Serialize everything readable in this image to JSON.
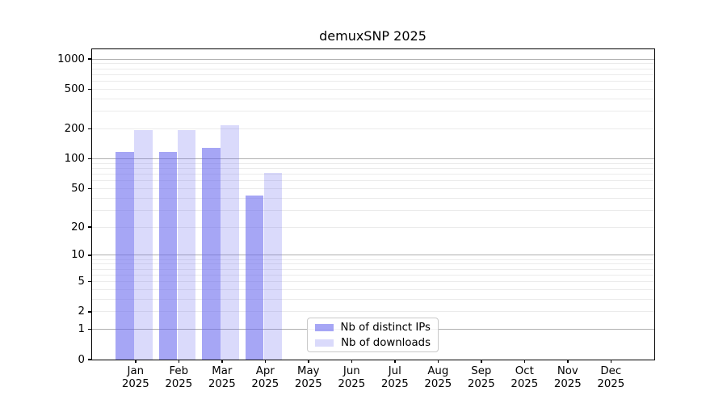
{
  "chart_data": {
    "type": "bar",
    "title": "demuxSNP 2025",
    "x_months": [
      "Jan",
      "Feb",
      "Mar",
      "Apr",
      "May",
      "Jun",
      "Jul",
      "Aug",
      "Sep",
      "Oct",
      "Nov",
      "Dec"
    ],
    "x_year": "2025",
    "y_ticks": [
      0,
      1,
      2,
      5,
      10,
      20,
      50,
      100,
      200,
      500,
      1000
    ],
    "y_major_gridlines": [
      1,
      10,
      100,
      1000
    ],
    "y_minor_gridlines": [
      2,
      3,
      4,
      5,
      6,
      7,
      8,
      9,
      20,
      30,
      40,
      50,
      60,
      70,
      80,
      90,
      200,
      300,
      400,
      500,
      600,
      700,
      800,
      900
    ],
    "y_scale": "log1p",
    "y_top_value": 1250,
    "ylim": [
      0,
      1250
    ],
    "grid": "horizontal, log minor + major",
    "legend_location": "lower center",
    "series": [
      {
        "name": "Nb of distinct IPs",
        "color": "#6666ee",
        "alpha": 0.58,
        "values": [
          118,
          118,
          128,
          42,
          0,
          0,
          0,
          0,
          0,
          0,
          0,
          0
        ]
      },
      {
        "name": "Nb of downloads",
        "color": "#6666ee",
        "alpha": 0.24,
        "values": [
          195,
          195,
          217,
          72,
          0,
          0,
          0,
          0,
          0,
          0,
          0,
          0
        ]
      }
    ]
  },
  "colors": {
    "background": "#ffffff",
    "spine": "#000000",
    "major_grid": "#b0b0b0",
    "minor_grid": "#ebebeb",
    "text": "#000000",
    "legend_border": "#c9c9c9"
  }
}
